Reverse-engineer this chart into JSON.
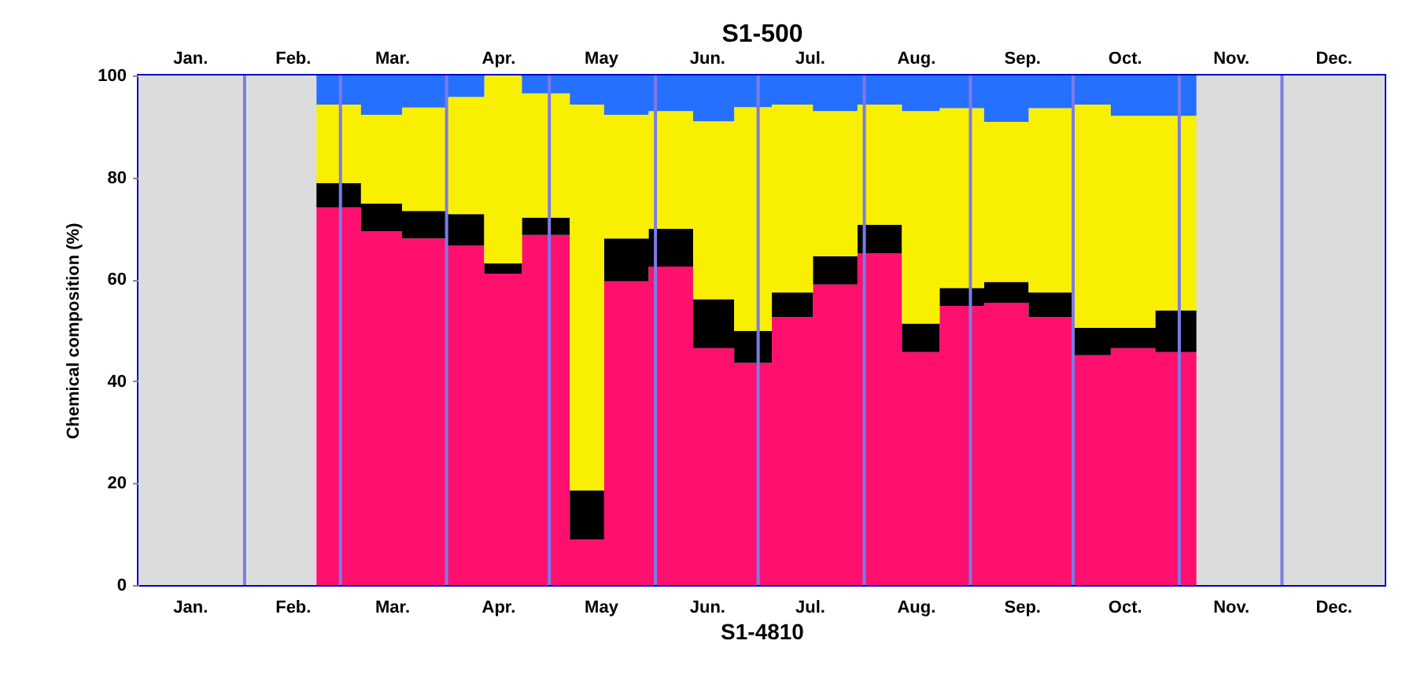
{
  "chart_data": {
    "type": "area",
    "stacked": true,
    "xlabel": "S1-4810",
    "x2label": "S1-500",
    "ylabel": "Chemical composition (%)",
    "x": [
      "--02-22",
      "--03-07",
      "--03-07",
      "--03-19",
      "--03-19",
      "--04-01",
      "--04-01",
      "--04-12",
      "--04-12",
      "--04-23",
      "--04-23",
      "--05-07",
      "--05-07",
      "--05-17",
      "--05-17",
      "--05-30",
      "--05-30",
      "--06-12",
      "--06-12",
      "--06-24",
      "--06-24",
      "--07-05",
      "--07-05",
      "--07-17",
      "--07-17",
      "--07-30",
      "--07-30",
      "--08-12",
      "--08-12",
      "--08-23",
      "--08-23",
      "--09-05",
      "--09-05",
      "--09-18",
      "--09-18",
      "--10-01",
      "--10-01",
      "--10-12",
      "--10-12",
      "--10-25",
      "--10-25",
      "--11-06"
    ],
    "series": [
      {
        "color": "#ff0f6e",
        "values": [
          74.1,
          74.1,
          69.4,
          69.4,
          68.0,
          68.0,
          66.6,
          66.6,
          61.1,
          61.1,
          68.7,
          68.7,
          8.9,
          8.9,
          59.6,
          59.6,
          62.5,
          62.5,
          46.5,
          46.5,
          43.6,
          43.6,
          52.6,
          52.6,
          59.0,
          59.0,
          65.1,
          65.1,
          45.7,
          45.7,
          54.8,
          54.8,
          55.4,
          55.4,
          52.6,
          52.6,
          45.1,
          45.1,
          46.5,
          46.5,
          45.7,
          45.7
        ]
      },
      {
        "color": "#000000",
        "values": [
          4.8,
          4.8,
          5.5,
          5.5,
          5.4,
          5.4,
          6.2,
          6.2,
          2.0,
          2.0,
          3.4,
          3.4,
          9.7,
          9.7,
          8.4,
          8.4,
          7.4,
          7.4,
          9.6,
          9.6,
          6.3,
          6.3,
          4.8,
          4.8,
          5.5,
          5.5,
          5.6,
          5.6,
          5.6,
          5.6,
          3.5,
          3.5,
          4.1,
          4.1,
          4.8,
          4.8,
          5.4,
          5.4,
          4.0,
          4.0,
          8.2,
          8.2
        ]
      },
      {
        "color": "#f8f000",
        "values": [
          15.4,
          15.4,
          17.4,
          17.4,
          20.3,
          20.3,
          23.0,
          23.0,
          36.9,
          36.9,
          24.4,
          24.4,
          75.7,
          75.7,
          24.3,
          24.3,
          23.1,
          23.1,
          34.9,
          34.9,
          43.9,
          43.9,
          36.9,
          36.9,
          28.5,
          28.5,
          23.6,
          23.6,
          41.7,
          41.7,
          35.3,
          35.3,
          31.4,
          31.4,
          36.2,
          36.2,
          43.8,
          43.8,
          41.6,
          41.6,
          38.2,
          38.2
        ]
      },
      {
        "color": "#2670ff",
        "values": [
          5.7,
          5.7,
          7.7,
          7.7,
          6.3,
          6.3,
          4.2,
          4.2,
          0,
          0,
          3.5,
          3.5,
          5.7,
          5.7,
          7.7,
          7.7,
          7.0,
          7.0,
          9.0,
          9.0,
          6.2,
          6.2,
          5.7,
          5.7,
          7.0,
          7.0,
          5.7,
          5.7,
          7.0,
          7.0,
          6.4,
          6.4,
          9.1,
          9.1,
          6.4,
          6.4,
          5.7,
          5.7,
          7.9,
          7.9,
          7.9,
          7.9
        ]
      }
    ],
    "xlim": [
      "--01-01",
      "--12-31"
    ],
    "xticks": [
      {
        "value": "--01-16",
        "label": "Jan."
      },
      {
        "value": "--02-15",
        "label": "Feb."
      },
      {
        "value": "--03-16",
        "label": "Mar."
      },
      {
        "value": "--04-16",
        "label": "Apr."
      },
      {
        "value": "--05-16",
        "label": "May"
      },
      {
        "value": "--06-16",
        "label": "Jun."
      },
      {
        "value": "--07-16",
        "label": "Jul."
      },
      {
        "value": "--08-16",
        "label": "Aug."
      },
      {
        "value": "--09-16",
        "label": "Sep."
      },
      {
        "value": "--10-16",
        "label": "Oct."
      },
      {
        "value": "--11-16",
        "label": "Nov."
      },
      {
        "value": "--12-16",
        "label": "Dec."
      }
    ],
    "x2lim": [
      "--01-01",
      "--12-31"
    ],
    "x2ticks": [
      {
        "value": "--01-16",
        "label": "Jan."
      },
      {
        "value": "--02-15",
        "label": "Feb."
      },
      {
        "value": "--03-16",
        "label": "Mar."
      },
      {
        "value": "--04-16",
        "label": "Apr."
      },
      {
        "value": "--05-16",
        "label": "May"
      },
      {
        "value": "--06-16",
        "label": "Jun."
      },
      {
        "value": "--07-16",
        "label": "Jul."
      },
      {
        "value": "--08-16",
        "label": "Aug."
      },
      {
        "value": "--09-16",
        "label": "Sep."
      },
      {
        "value": "--10-16",
        "label": "Oct."
      },
      {
        "value": "--11-16",
        "label": "Nov."
      },
      {
        "value": "--12-16",
        "label": "Dec."
      }
    ],
    "ylim": [
      0,
      100
    ],
    "yticks": [
      0,
      20,
      40,
      60,
      80,
      100
    ],
    "bands": [
      {
        "axis": "x",
        "from": "--01-01",
        "to": "--03-01",
        "color": "#dcdcdc"
      },
      {
        "axis": "x",
        "from": "--11-01",
        "to": "--12-31",
        "color": "#dcdcdc"
      }
    ],
    "ref_lines": [
      {
        "axis": "x",
        "value": "--02-01",
        "color": "#7b7bea"
      },
      {
        "axis": "x",
        "value": "--03-01",
        "color": "#7b7bea"
      },
      {
        "axis": "x",
        "value": "--04-01",
        "color": "#7b7bea"
      },
      {
        "axis": "x",
        "value": "--05-01",
        "color": "#7b7bea"
      },
      {
        "axis": "x",
        "value": "--06-01",
        "color": "#7b7bea"
      },
      {
        "axis": "x",
        "value": "--07-01",
        "color": "#7b7bea"
      },
      {
        "axis": "x",
        "value": "--08-01",
        "color": "#7b7bea"
      },
      {
        "axis": "x",
        "value": "--09-01",
        "color": "#7b7bea"
      },
      {
        "axis": "x",
        "value": "--10-01",
        "color": "#7b7bea"
      },
      {
        "axis": "x",
        "value": "--11-01",
        "color": "#7b7bea"
      },
      {
        "axis": "x",
        "value": "--12-01",
        "color": "#7b7bea"
      }
    ]
  }
}
